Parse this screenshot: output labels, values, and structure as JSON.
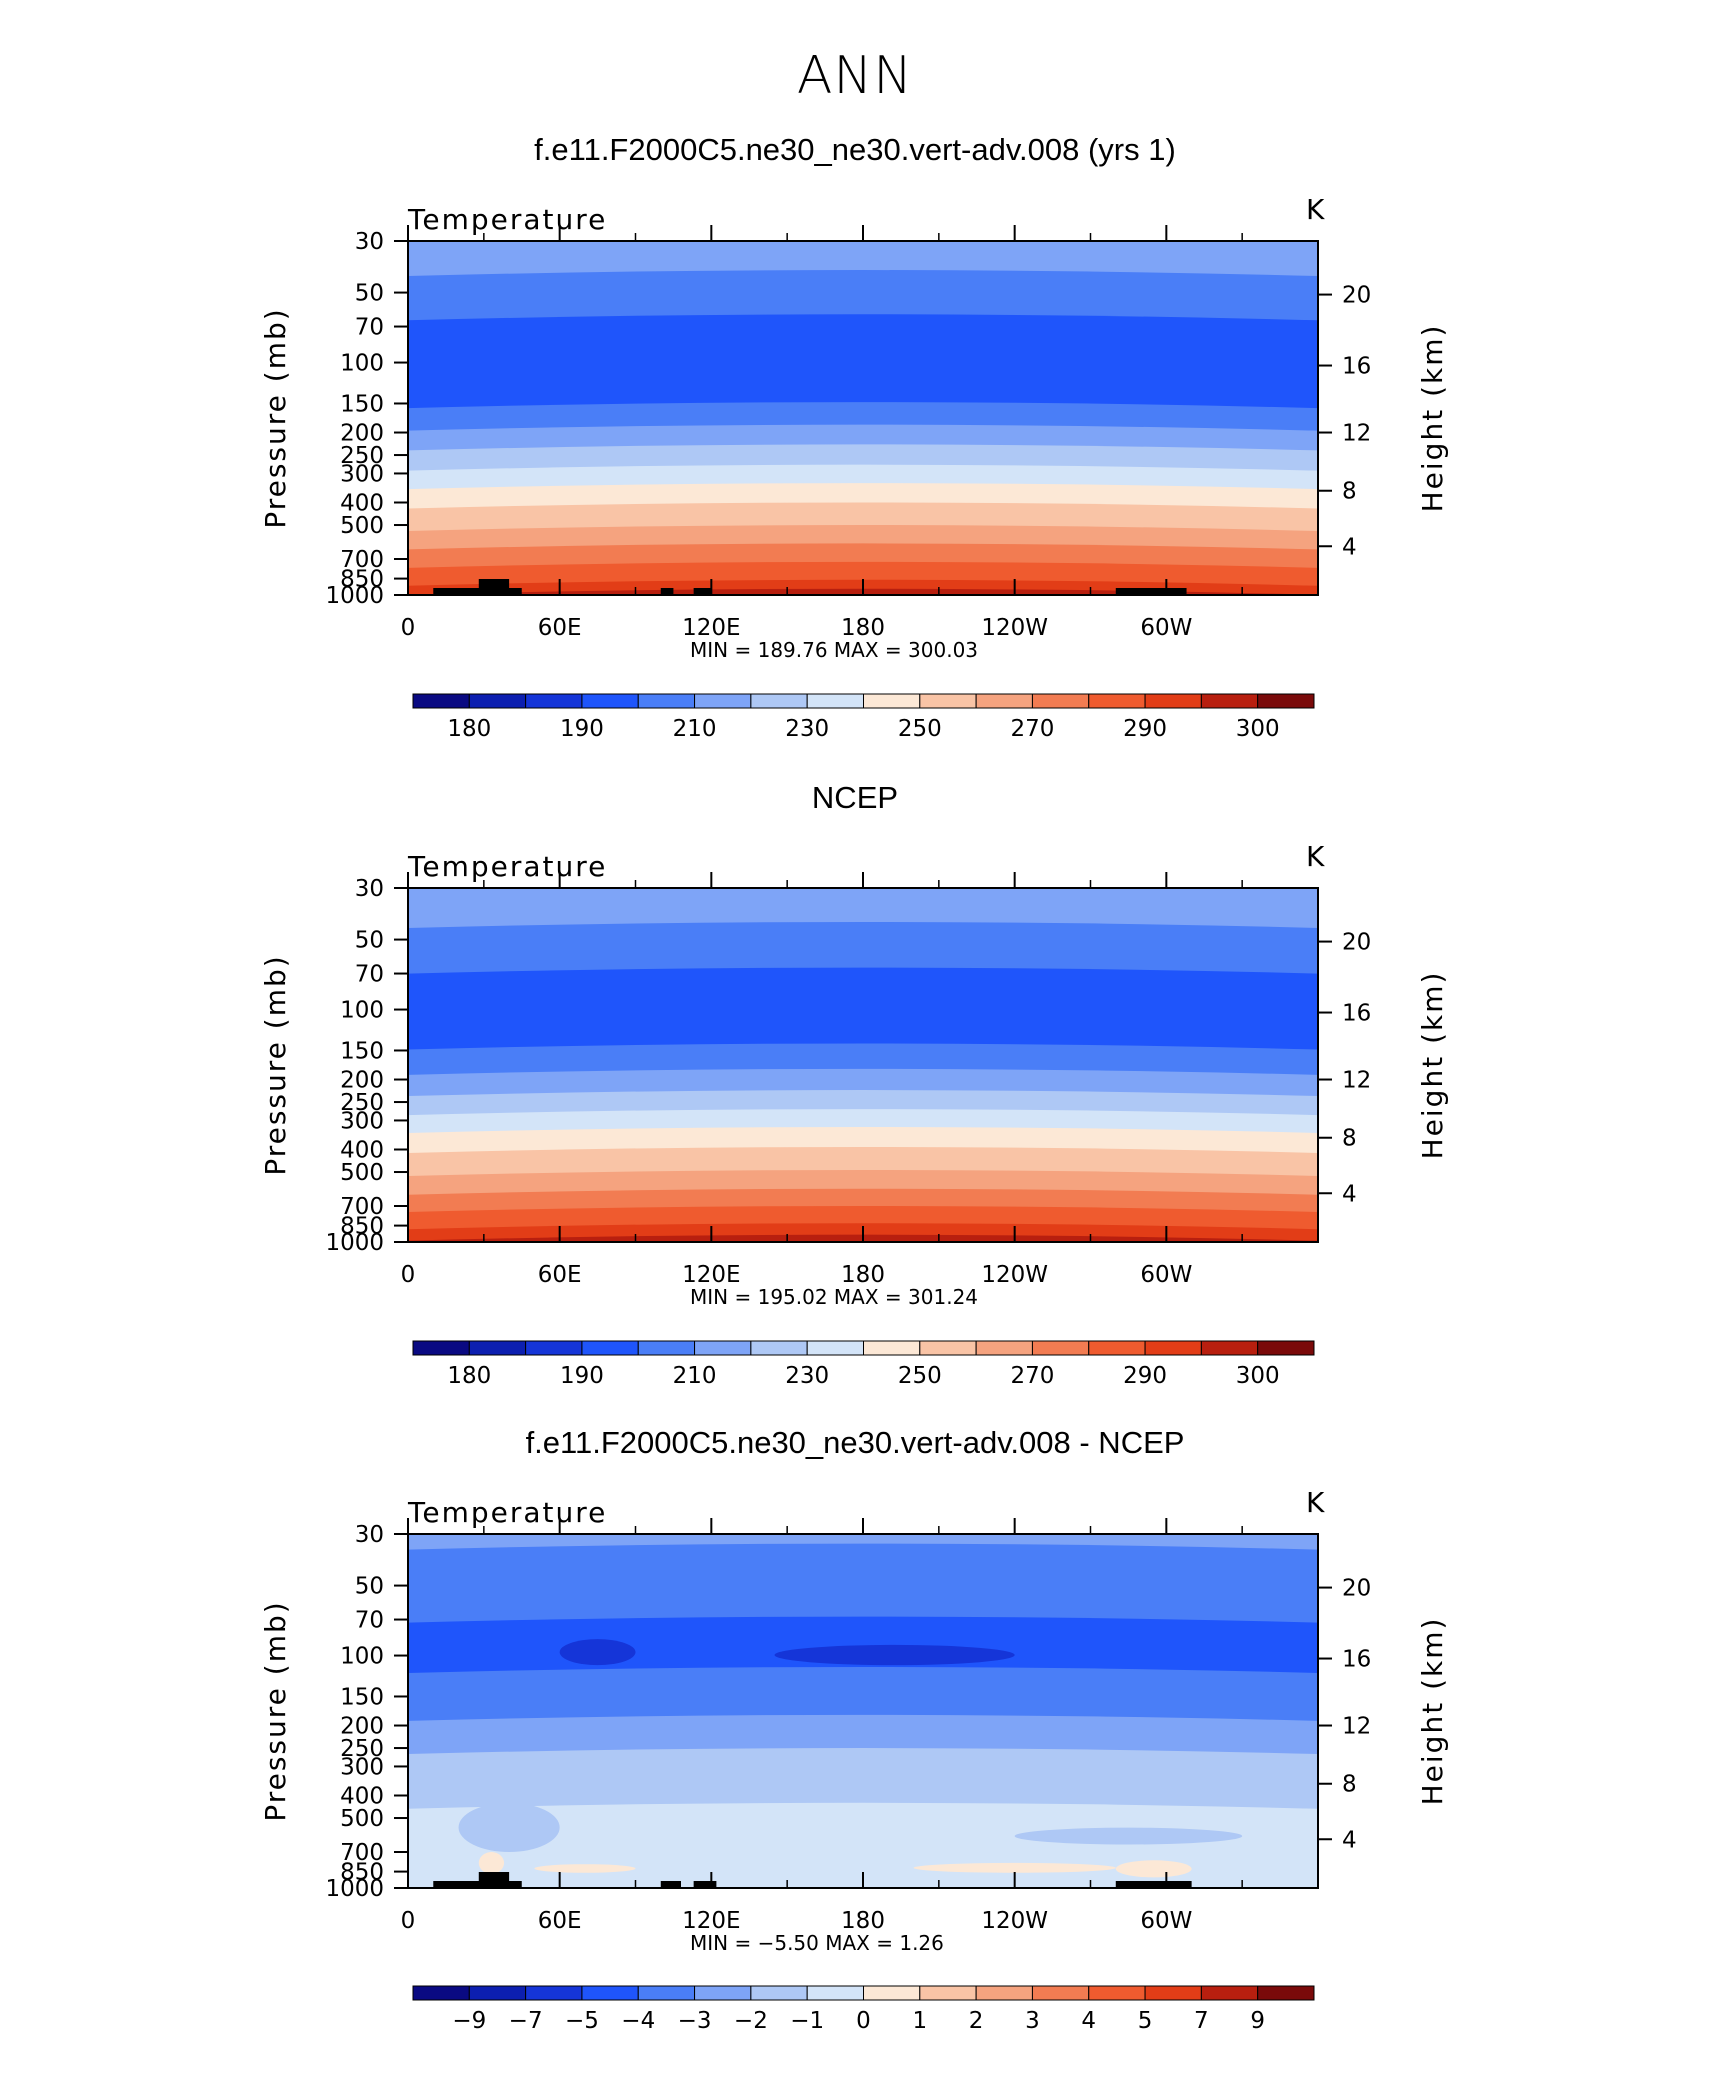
{
  "figure": {
    "title": "ANN"
  },
  "chart_data": [
    {
      "type": "heatmap",
      "title": "f.e11.F2000C5.ne30_ne30.vert-adv.008 (yrs 1)",
      "subtitle": "Temperature",
      "units": "K",
      "ylabel": "Pressure (mb)",
      "y2label": "Height (km)",
      "x_ticklabels": [
        "0",
        "60E",
        "120E",
        "180",
        "120W",
        "60W"
      ],
      "y_ticklabels": [
        "30",
        "50",
        "70",
        "100",
        "150",
        "200",
        "250",
        "300",
        "400",
        "500",
        "700",
        "850",
        "1000"
      ],
      "y2_ticklabels": [
        "20",
        "16",
        "12",
        "8",
        "4"
      ],
      "yscale": "log",
      "ylim": [
        1000,
        30
      ],
      "xlim": [
        0,
        360
      ],
      "stats": "MIN =  189.76   MAX =  300.03",
      "colorbar": {
        "levels": [
          "180",
          "190",
          "210",
          "230",
          "250",
          "270",
          "290",
          "300"
        ],
        "colors": [
          "#0a0a82",
          "#0c1fb0",
          "#1535d8",
          "#1f55fb",
          "#4a7ef7",
          "#7ea4f7",
          "#aec8f5",
          "#d3e4f8",
          "#fce8d6",
          "#f9c4a6",
          "#f5a37f",
          "#f27c52",
          "#ef5b2f",
          "#e23d17",
          "#b81f0f",
          "#7a0a0a"
        ]
      },
      "bands": [
        {
          "p_top": 30,
          "value_bin": 5
        },
        {
          "p_top": 40,
          "value_bin": 4
        },
        {
          "p_top": 62,
          "value_bin": 3
        },
        {
          "p_top": 148,
          "value_bin": 4
        },
        {
          "p_top": 185,
          "value_bin": 5
        },
        {
          "p_top": 225,
          "value_bin": 6
        },
        {
          "p_top": 275,
          "value_bin": 7
        },
        {
          "p_top": 330,
          "value_bin": 8
        },
        {
          "p_top": 400,
          "value_bin": 9
        },
        {
          "p_top": 500,
          "value_bin": 10
        },
        {
          "p_top": 600,
          "value_bin": 11
        },
        {
          "p_top": 720,
          "value_bin": 12
        },
        {
          "p_top": 860,
          "value_bin": 13
        },
        {
          "p_top": 940,
          "value_bin": 14
        }
      ],
      "terrain": [
        [
          10,
          40
        ],
        [
          30,
          45
        ],
        [
          100,
          105
        ],
        [
          113,
          120
        ],
        [
          280,
          308
        ]
      ],
      "terrain_high": [
        [
          28,
          40
        ]
      ]
    },
    {
      "type": "heatmap",
      "title": "NCEP",
      "subtitle": "Temperature",
      "units": "K",
      "ylabel": "Pressure (mb)",
      "y2label": "Height (km)",
      "x_ticklabels": [
        "0",
        "60E",
        "120E",
        "180",
        "120W",
        "60W"
      ],
      "y_ticklabels": [
        "30",
        "50",
        "70",
        "100",
        "150",
        "200",
        "250",
        "300",
        "400",
        "500",
        "700",
        "850",
        "1000"
      ],
      "y2_ticklabels": [
        "20",
        "16",
        "12",
        "8",
        "4"
      ],
      "yscale": "log",
      "ylim": [
        1000,
        30
      ],
      "xlim": [
        0,
        360
      ],
      "stats": "MIN =  195.02   MAX =  301.24",
      "colorbar": {
        "levels": [
          "180",
          "190",
          "210",
          "230",
          "250",
          "270",
          "290",
          "300"
        ],
        "colors": [
          "#0a0a82",
          "#0c1fb0",
          "#1535d8",
          "#1f55fb",
          "#4a7ef7",
          "#7ea4f7",
          "#aec8f5",
          "#d3e4f8",
          "#fce8d6",
          "#f9c4a6",
          "#f5a37f",
          "#f27c52",
          "#ef5b2f",
          "#e23d17",
          "#b81f0f",
          "#7a0a0a"
        ]
      },
      "bands": [
        {
          "p_top": 30,
          "value_bin": 5
        },
        {
          "p_top": 42,
          "value_bin": 4
        },
        {
          "p_top": 66,
          "value_bin": 3
        },
        {
          "p_top": 140,
          "value_bin": 4
        },
        {
          "p_top": 180,
          "value_bin": 5
        },
        {
          "p_top": 222,
          "value_bin": 6
        },
        {
          "p_top": 268,
          "value_bin": 7
        },
        {
          "p_top": 320,
          "value_bin": 8
        },
        {
          "p_top": 390,
          "value_bin": 9
        },
        {
          "p_top": 490,
          "value_bin": 10
        },
        {
          "p_top": 590,
          "value_bin": 11
        },
        {
          "p_top": 700,
          "value_bin": 12
        },
        {
          "p_top": 830,
          "value_bin": 13
        },
        {
          "p_top": 930,
          "value_bin": 14
        }
      ],
      "terrain": [],
      "terrain_high": []
    },
    {
      "type": "heatmap",
      "title": "f.e11.F2000C5.ne30_ne30.vert-adv.008 - NCEP",
      "subtitle": "Temperature",
      "units": "K",
      "ylabel": "Pressure (mb)",
      "y2label": "Height (km)",
      "x_ticklabels": [
        "0",
        "60E",
        "120E",
        "180",
        "120W",
        "60W"
      ],
      "y_ticklabels": [
        "30",
        "50",
        "70",
        "100",
        "150",
        "200",
        "250",
        "300",
        "400",
        "500",
        "700",
        "850",
        "1000"
      ],
      "y2_ticklabels": [
        "20",
        "16",
        "12",
        "8",
        "4"
      ],
      "yscale": "log",
      "ylim": [
        1000,
        30
      ],
      "xlim": [
        0,
        360
      ],
      "stats": "MIN =   −5.50   MAX =     1.26",
      "colorbar": {
        "levels": [
          "−9",
          "−7",
          "−5",
          "−4",
          "−3",
          "−2",
          "−1",
          "0",
          "1",
          "2",
          "3",
          "4",
          "5",
          "7",
          "9"
        ],
        "colors": [
          "#0a0a82",
          "#0c1fb0",
          "#1535d8",
          "#1f55fb",
          "#4a7ef7",
          "#7ea4f7",
          "#aec8f5",
          "#d3e4f8",
          "#fce8d6",
          "#f9c4a6",
          "#f5a37f",
          "#f27c52",
          "#ef5b2f",
          "#e23d17",
          "#b81f0f",
          "#7a0a0a"
        ]
      },
      "bands": [
        {
          "p_top": 30,
          "value_bin": 5
        },
        {
          "p_top": 33,
          "value_bin": 4
        },
        {
          "p_top": 68,
          "value_bin": 3
        },
        {
          "p_top": 112,
          "value_bin": 4
        },
        {
          "p_top": 180,
          "value_bin": 5
        },
        {
          "p_top": 250,
          "value_bin": 6
        },
        {
          "p_top": 430,
          "value_bin": 7
        },
        {
          "p_top": 880,
          "value_bin": 7
        }
      ],
      "patches": [
        {
          "x": [
            60,
            90
          ],
          "p": [
            85,
            110
          ],
          "value_bin": 2
        },
        {
          "x": [
            145,
            240
          ],
          "p": [
            90,
            110
          ],
          "value_bin": 2
        },
        {
          "x": [
            20,
            60
          ],
          "p": [
            430,
            700
          ],
          "value_bin": 6
        },
        {
          "x": [
            240,
            330
          ],
          "p": [
            550,
            650
          ],
          "value_bin": 6
        },
        {
          "x": [
            50,
            90
          ],
          "p": [
            790,
            860
          ],
          "value_bin": 8
        },
        {
          "x": [
            200,
            280
          ],
          "p": [
            780,
            860
          ],
          "value_bin": 8
        },
        {
          "x": [
            280,
            310
          ],
          "p": [
            760,
            900
          ],
          "value_bin": 8
        },
        {
          "x": [
            28,
            38
          ],
          "p": [
            700,
            870
          ],
          "value_bin": 8
        }
      ],
      "terrain": [
        [
          10,
          42
        ],
        [
          30,
          45
        ],
        [
          100,
          108
        ],
        [
          113,
          122
        ],
        [
          280,
          310
        ]
      ],
      "terrain_high": [
        [
          28,
          40
        ]
      ]
    }
  ]
}
